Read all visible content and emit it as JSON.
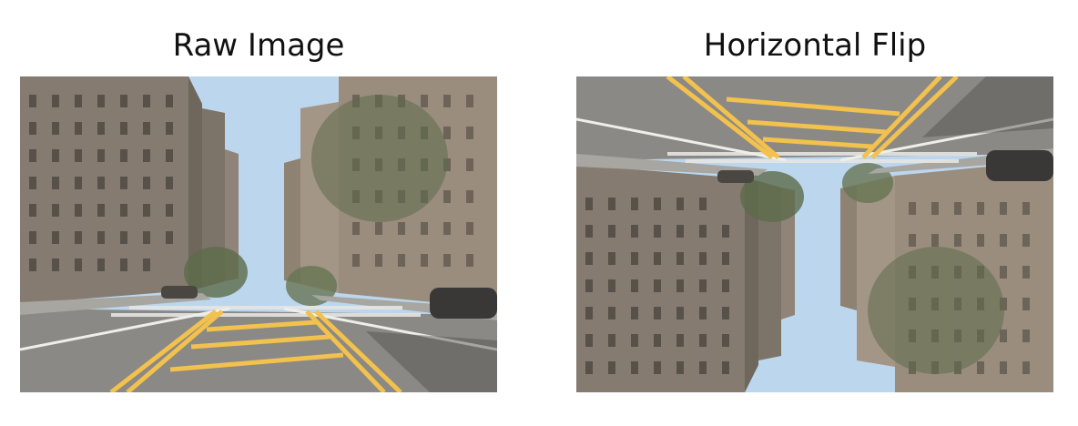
{
  "panels": [
    {
      "title": "Raw Image"
    },
    {
      "title": "Horizontal Flip"
    }
  ],
  "colors": {
    "sky": "#bcd6ee",
    "road": "#8a8985",
    "lane_yellow": "#f2c14e",
    "building_left": "#857b70",
    "building_right": "#9a8d7e",
    "trees": "#5d6b4a"
  }
}
